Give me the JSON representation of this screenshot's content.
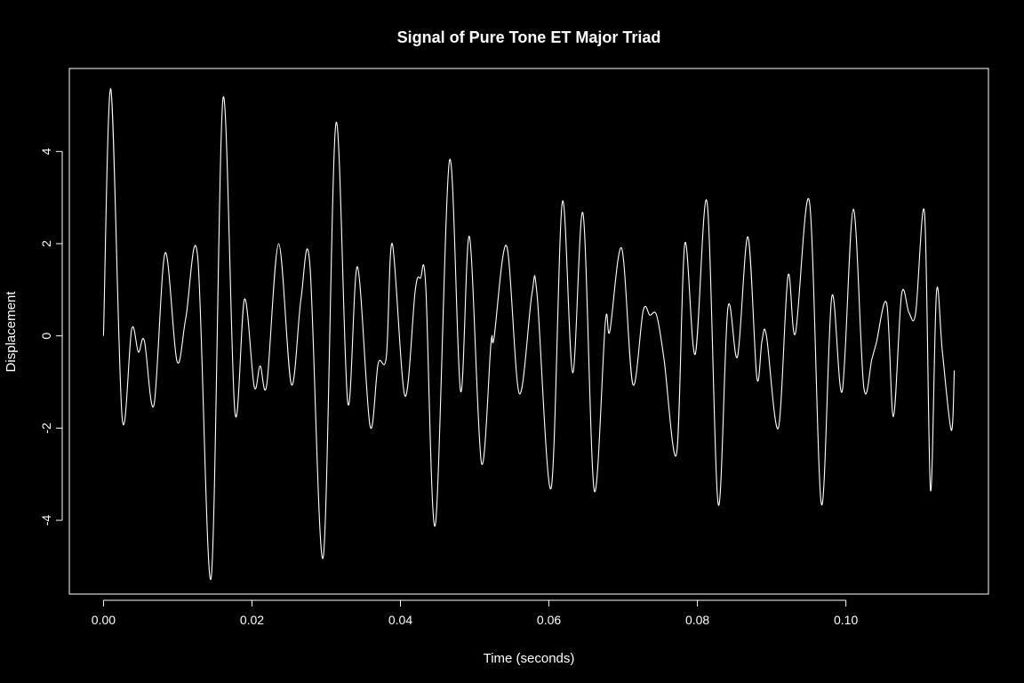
{
  "chart_data": {
    "type": "line",
    "title": "Signal of Pure Tone ET Major Triad",
    "xlabel": "Time (seconds)",
    "ylabel": "Displacement",
    "xlim": [
      -0.0046,
      0.1192
    ],
    "ylim": [
      -5.6,
      5.8
    ],
    "x_ticks": [
      0.0,
      0.02,
      0.04,
      0.06,
      0.08,
      0.1
    ],
    "x_tick_labels": [
      "0.00",
      "0.02",
      "0.04",
      "0.06",
      "0.08",
      "0.10"
    ],
    "y_ticks": [
      -4,
      -2,
      0,
      2,
      4
    ],
    "y_tick_labels": [
      "-4",
      "-2",
      "0",
      "2",
      "4"
    ],
    "grid": false,
    "legend": "none",
    "colors": {
      "background": "#000000",
      "foreground": "#ffffff"
    },
    "series": [
      {
        "x": [
          0.0,
          0.001,
          0.0025,
          0.0038,
          0.0047,
          0.0055,
          0.0068,
          0.0083,
          0.0099,
          0.0111,
          0.0127,
          0.0145,
          0.0161,
          0.0177,
          0.019,
          0.0203,
          0.0211,
          0.022,
          0.0236,
          0.0253,
          0.0266,
          0.0278,
          0.0296,
          0.0313,
          0.0329,
          0.0342,
          0.0359,
          0.037,
          0.0381,
          0.0389,
          0.0406,
          0.042,
          0.0427,
          0.0434,
          0.0447,
          0.0466,
          0.0481,
          0.0493,
          0.0509,
          0.0522,
          0.0526,
          0.0543,
          0.056,
          0.0577,
          0.0584,
          0.0603,
          0.0618,
          0.0632,
          0.0646,
          0.0661,
          0.0676,
          0.0682,
          0.0698,
          0.0713,
          0.0727,
          0.0736,
          0.0745,
          0.0755,
          0.0772,
          0.0783,
          0.0797,
          0.0813,
          0.0828,
          0.0841,
          0.0854,
          0.0868,
          0.088,
          0.0887,
          0.0893,
          0.0909,
          0.0922,
          0.0932,
          0.0951,
          0.0967,
          0.0981,
          0.0995,
          0.101,
          0.1024,
          0.1035,
          0.1041,
          0.1055,
          0.1064,
          0.1075,
          0.1085,
          0.1094,
          0.1106,
          0.1114,
          0.1122,
          0.113,
          0.1142,
          0.1146
        ],
        "y": [
          0.0,
          5.35,
          -1.75,
          0.15,
          -0.35,
          -0.1,
          -1.5,
          1.8,
          -0.55,
          0.4,
          1.7,
          -5.25,
          5.15,
          -1.65,
          0.8,
          -1.1,
          -0.65,
          -1.05,
          2.0,
          -1.05,
          0.8,
          1.55,
          -4.8,
          4.6,
          -1.45,
          1.5,
          -1.95,
          -0.6,
          -0.45,
          2.0,
          -1.3,
          1.0,
          1.25,
          1.1,
          -4.1,
          3.8,
          -1.2,
          2.15,
          -2.75,
          -0.15,
          -0.05,
          1.95,
          -1.25,
          0.9,
          0.9,
          -3.3,
          2.9,
          -0.8,
          2.65,
          -3.35,
          0.3,
          0.1,
          1.9,
          -1.05,
          0.55,
          0.45,
          0.45,
          -0.5,
          -2.55,
          2.0,
          -0.4,
          2.9,
          -3.65,
          0.6,
          -0.45,
          2.15,
          -0.9,
          -0.1,
          0.0,
          -2.0,
          1.3,
          0.05,
          2.9,
          -3.65,
          0.85,
          -1.2,
          2.75,
          -1.1,
          -0.5,
          -0.15,
          0.7,
          -1.75,
          0.9,
          0.5,
          0.5,
          2.65,
          -3.35,
          0.95,
          -0.35,
          -2.05,
          -0.75
        ]
      }
    ]
  }
}
